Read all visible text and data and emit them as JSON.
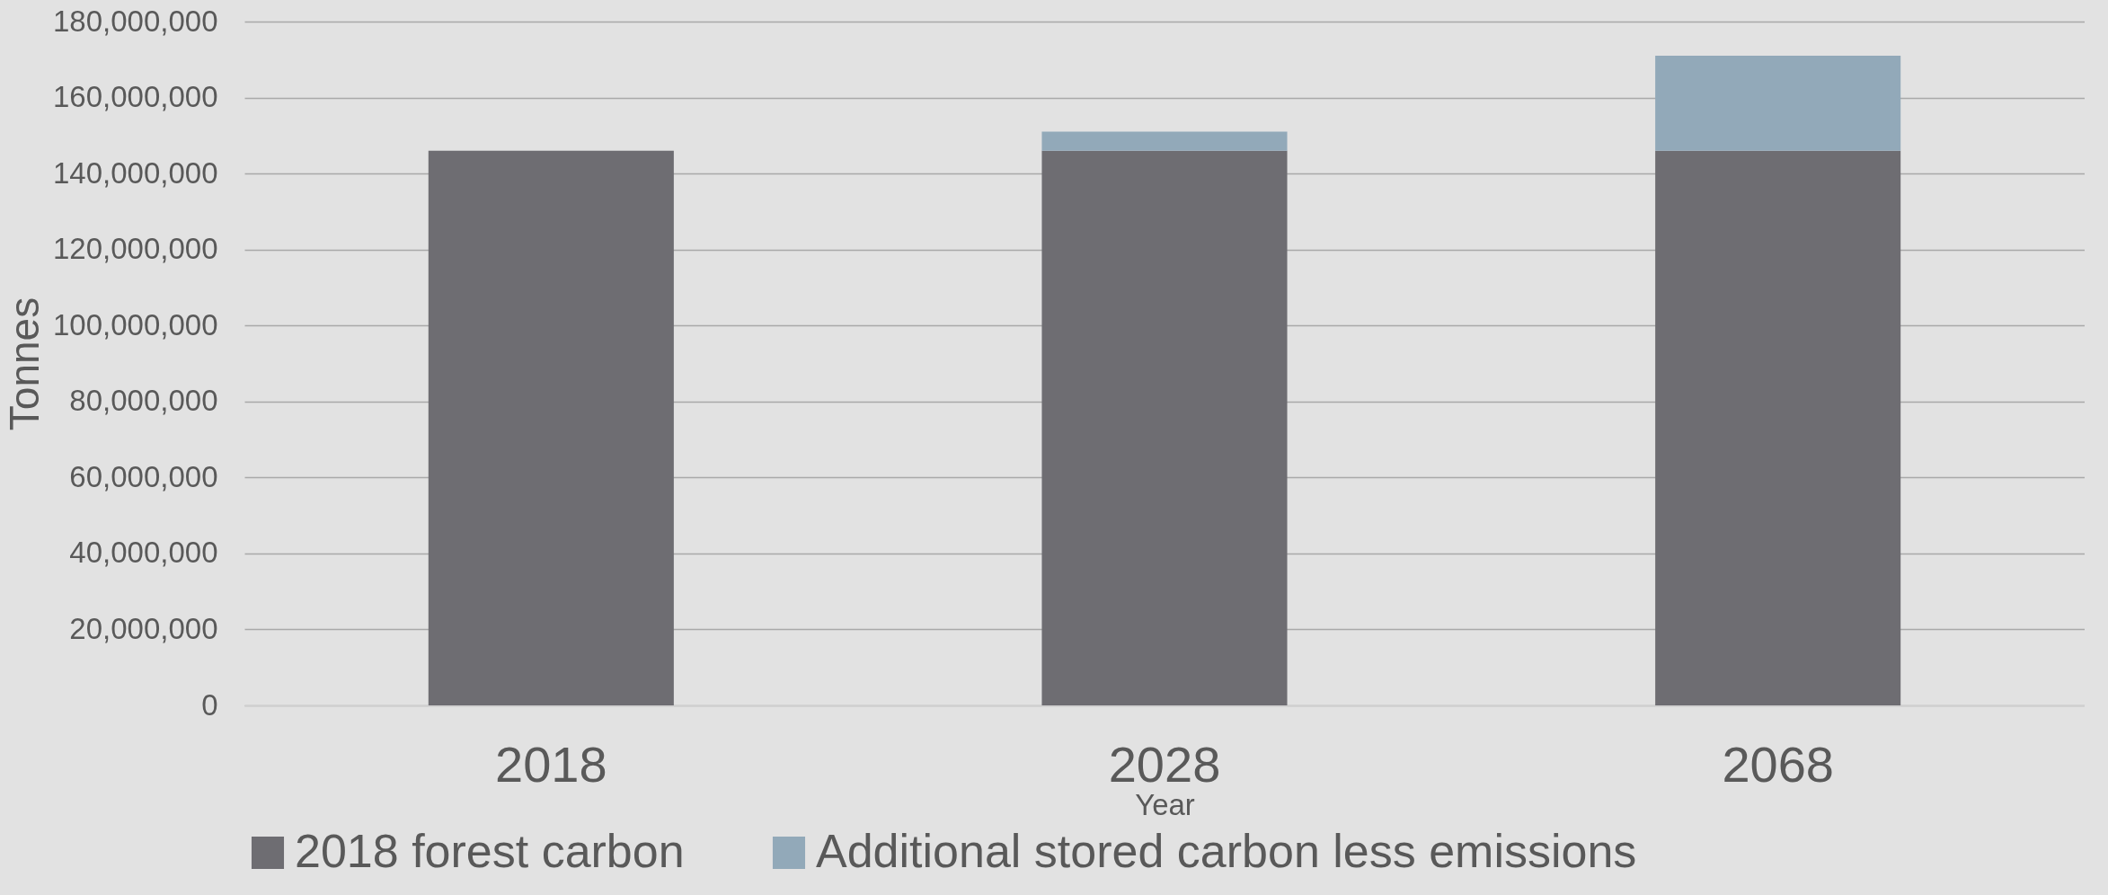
{
  "chart_data": {
    "type": "bar",
    "stacked": true,
    "xlabel": "Year",
    "ylabel": "Tonnes",
    "categories": [
      "2018",
      "2028",
      "2068"
    ],
    "series": [
      {
        "name": "2018 forest carbon",
        "color": "#6e6d72",
        "values": [
          146000000,
          146000000,
          146000000
        ]
      },
      {
        "name": "Additional stored carbon less emissions",
        "color": "#92a9b9",
        "values": [
          0,
          5000000,
          25000000
        ]
      }
    ],
    "ylim": [
      0,
      180000000
    ],
    "yticks": [
      0,
      {
        "value": 20000000,
        "label": "20,000,000"
      },
      {
        "value": 40000000,
        "label": "40,000,000"
      },
      {
        "value": 60000000,
        "label": "60,000,000"
      },
      {
        "value": 80000000,
        "label": "80,000,000"
      },
      {
        "value": 100000000,
        "label": "100,000,000"
      },
      {
        "value": 120000000,
        "label": "120,000,000"
      },
      {
        "value": 140000000,
        "label": "140,000,000"
      },
      {
        "value": 160000000,
        "label": "160,000,000"
      },
      {
        "value": 180000000,
        "label": "180,000,000"
      }
    ],
    "grid": "y",
    "legend": "bottom"
  }
}
